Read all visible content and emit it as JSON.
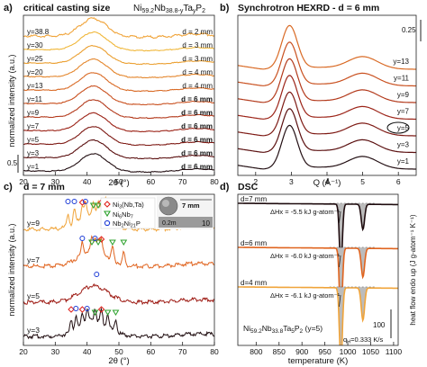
{
  "colors": {
    "ramp": [
      "#241014",
      "#5a0f0f",
      "#7e1a14",
      "#9c2418",
      "#b33a1c",
      "#c9501f",
      "#d96a25",
      "#e4862c",
      "#eba032",
      "#f0b73a"
    ],
    "p_a": "#f0a43a",
    "p_b": "#e0641f",
    "p_c": "#9e1b14",
    "p_d": "#1f0c0f",
    "dsc_fill": "#bcbcbc",
    "marker_ni": "#e0201a",
    "marker_nb": "#2aa02a",
    "marker_nip": "#1c3bd6"
  },
  "panels": {
    "a": {
      "letter": "a)",
      "title": "critical casting size",
      "formula": "Ni59.2Nb38.8-yTayP2"
    },
    "b": {
      "letter": "b)",
      "title": "Synchrotron HEXRD - d = 6 mm"
    },
    "c": {
      "letter": "c)",
      "title": "d = 7 mm",
      "inset_label": "7 mm",
      "inset_scale": "0.2m",
      "inset_ruler": "10"
    },
    "d": {
      "letter": "d)",
      "title": "DSC",
      "formula": "Ni59.2Nb33.8Ta5P2 (y=5)",
      "rate": "qH=0.333 K/s"
    }
  },
  "chart_data": [
    {
      "id": "a",
      "type": "line",
      "title": "critical casting size",
      "xlabel": "2θ (°)",
      "ylabel": "normalized intensity (a.u.)",
      "xlim": [
        20,
        80
      ],
      "xticks": [
        20,
        30,
        40,
        50,
        60,
        70,
        80
      ],
      "scale_bar": "0.5",
      "peak_2theta": 42,
      "series": [
        {
          "y": "y=1",
          "d": "d = 6 mm"
        },
        {
          "y": "y=3",
          "d": "d = 6 mm"
        },
        {
          "y": "y=5",
          "d": "d = 6 mm"
        },
        {
          "y": "y=7",
          "d": "d = 6 mm"
        },
        {
          "y": "y=9",
          "d": "d = 6 mm"
        },
        {
          "y": "y=11",
          "d": "d = 6 mm"
        },
        {
          "y": "y=13",
          "d": "d = 4 mm"
        },
        {
          "y": "y=20",
          "d": "d = 4 mm"
        },
        {
          "y": "y=25",
          "d": "d = 3 mm"
        },
        {
          "y": "y=30",
          "d": "d = 3 mm"
        },
        {
          "y": "y=38.8",
          "d": "d = 2 mm"
        }
      ]
    },
    {
      "id": "b",
      "type": "line",
      "title": "Synchrotron HEXRD - d = 6 mm",
      "xlabel": "Q (Å⁻¹)",
      "xlim": [
        1.5,
        6.5
      ],
      "xticks": [
        2,
        3,
        4,
        5,
        6
      ],
      "scale_bar": "0.25",
      "peaks_Q": [
        2.95,
        5.0
      ],
      "highlighted": "y=5",
      "series": [
        "y=1",
        "y=3",
        "y=5",
        "y=7",
        "y=9",
        "y=11",
        "y=13"
      ]
    },
    {
      "id": "c",
      "type": "line",
      "title": "d = 7 mm",
      "xlabel": "2θ (°)",
      "ylabel": "normalized intensity (a.u.)",
      "xlim": [
        20,
        80
      ],
      "xticks": [
        20,
        30,
        40,
        50,
        60,
        70,
        80
      ],
      "legend": [
        "Ni3(Nb,Ta)",
        "Ni6Nb7",
        "Nb2Ni21P"
      ],
      "series": [
        "y=3",
        "y=5",
        "y=7",
        "y=9"
      ],
      "marks": {
        "y=9": {
          "ni": [
            38.5,
            44.5,
            47
          ],
          "nb": [
            42,
            43.5,
            46,
            48,
            50
          ],
          "nip": [
            34,
            36,
            39.5,
            45.5
          ]
        },
        "y=7": {
          "ni": [
            44.5
          ],
          "nb": [
            41.5,
            43.5,
            48,
            51.5
          ],
          "nip": [
            38.5,
            42.5
          ]
        },
        "y=5": {
          "ni": [],
          "nb": [],
          "nip": [
            43
          ]
        },
        "y=3": {
          "ni": [
            35,
            38.5,
            44.5
          ],
          "nb": [
            42.5,
            46.5,
            49
          ],
          "nip": [
            36.5,
            40
          ]
        }
      }
    },
    {
      "id": "d",
      "type": "line",
      "title": "DSC",
      "xlabel": "temperature (K)",
      "ylabel": "heat flow endo up (J g-atom⁻¹ K⁻¹)",
      "xlim": [
        760,
        1110
      ],
      "xticks": [
        800,
        850,
        900,
        950,
        1000,
        1050,
        1100
      ],
      "scale_bar": "100",
      "series": [
        {
          "name": "d=7 mm",
          "dH": "ΔHx = -5.5 kJ g-atom⁻¹",
          "peaks_K": [
            985,
            1033
          ]
        },
        {
          "name": "d=6 mm",
          "dH": "ΔHx = -6.0 kJ g-atom⁻¹",
          "peaks_K": [
            985,
            1033
          ]
        },
        {
          "name": "d=4 mm",
          "dH": "ΔHx = -6.1 kJ g-atom⁻¹",
          "peaks_K": [
            985,
            1033
          ]
        }
      ]
    }
  ]
}
